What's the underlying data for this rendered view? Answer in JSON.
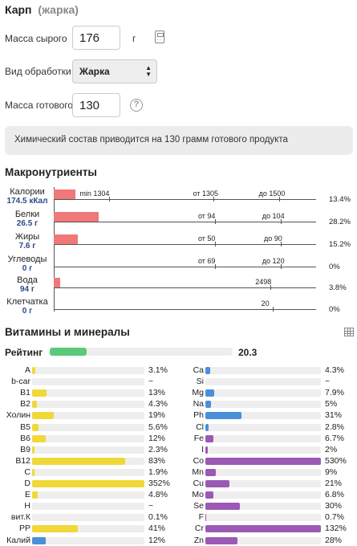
{
  "header": {
    "title": "Карп",
    "subtitle": "(жарка)"
  },
  "form": {
    "raw_mass_label": "Масса сырого",
    "raw_mass_value": "176",
    "raw_mass_unit": "г",
    "processing_label": "Вид обработки",
    "processing_value": "Жарка",
    "cooked_mass_label": "Масса готового",
    "cooked_mass_value": "130",
    "help": "?"
  },
  "note": "Химический состав приводится на 130 грамм готового продукта",
  "macros": {
    "title": "Макронутриенты",
    "rows": [
      {
        "name": "Калории",
        "value": "174.5 кКал",
        "bar_fraction": 0.134,
        "pct": "13.4%",
        "marks": [
          "min 1304",
          "от 1305",
          "до 1500"
        ]
      },
      {
        "name": "Белки",
        "value": "26.5 г",
        "bar_fraction": 0.282,
        "pct": "28.2%",
        "marks": [
          "от 94",
          "до 104"
        ]
      },
      {
        "name": "Жиры",
        "value": "7.6 г",
        "bar_fraction": 0.152,
        "pct": "15.2%",
        "marks": [
          "от 50",
          "до 90"
        ]
      },
      {
        "name": "Углеводы",
        "value": "0 г",
        "bar_fraction": 0,
        "pct": "0%",
        "marks": [
          "от 69",
          "до 120"
        ]
      },
      {
        "name": "Вода",
        "value": "94 г",
        "bar_fraction": 0.038,
        "pct": "3.8%",
        "marks": [
          "2498"
        ]
      },
      {
        "name": "Клетчатка",
        "value": "0 г",
        "bar_fraction": 0,
        "pct": "0%",
        "marks": [
          "20"
        ]
      }
    ]
  },
  "vitamins": {
    "title": "Витамины и минералы",
    "rating_label": "Рейтинг",
    "rating_value": "20.3",
    "rating_fraction": 0.203,
    "left": [
      {
        "name": "A",
        "pct": "3.1%",
        "frac": 0.031,
        "color": "#f0d838"
      },
      {
        "name": "b-car",
        "pct": "~",
        "frac": 0,
        "color": "#f0d838"
      },
      {
        "name": "B1",
        "pct": "13%",
        "frac": 0.13,
        "color": "#f0d838"
      },
      {
        "name": "B2",
        "pct": "4.3%",
        "frac": 0.043,
        "color": "#f0d838"
      },
      {
        "name": "Холин",
        "pct": "19%",
        "frac": 0.19,
        "color": "#f0d838"
      },
      {
        "name": "B5",
        "pct": "5.6%",
        "frac": 0.056,
        "color": "#f0d838"
      },
      {
        "name": "B6",
        "pct": "12%",
        "frac": 0.12,
        "color": "#f0d838"
      },
      {
        "name": "B9",
        "pct": "2.3%",
        "frac": 0.023,
        "color": "#f0d838"
      },
      {
        "name": "B12",
        "pct": "83%",
        "frac": 0.83,
        "color": "#f0d838"
      },
      {
        "name": "C",
        "pct": "1.9%",
        "frac": 0.019,
        "color": "#f0d838"
      },
      {
        "name": "D",
        "pct": "352%",
        "frac": 1.0,
        "color": "#f0d838"
      },
      {
        "name": "E",
        "pct": "4.8%",
        "frac": 0.048,
        "color": "#f0d838"
      },
      {
        "name": "H",
        "pct": "~",
        "frac": 0,
        "color": "#f0d838"
      },
      {
        "name": "вит.К",
        "pct": "0.1%",
        "frac": 0.001,
        "color": "#f0d838"
      },
      {
        "name": "PP",
        "pct": "41%",
        "frac": 0.41,
        "color": "#f0d838"
      },
      {
        "name": "Калий",
        "pct": "12%",
        "frac": 0.12,
        "color": "#4a8fd8"
      }
    ],
    "right": [
      {
        "name": "Ca",
        "pct": "4.3%",
        "frac": 0.043,
        "color": "#4a8fd8"
      },
      {
        "name": "Si",
        "pct": "~",
        "frac": 0,
        "color": "#4a8fd8"
      },
      {
        "name": "Mg",
        "pct": "7.9%",
        "frac": 0.079,
        "color": "#4a8fd8"
      },
      {
        "name": "Na",
        "pct": "5%",
        "frac": 0.05,
        "color": "#4a8fd8"
      },
      {
        "name": "Ph",
        "pct": "31%",
        "frac": 0.31,
        "color": "#4a8fd8"
      },
      {
        "name": "Cl",
        "pct": "2.8%",
        "frac": 0.028,
        "color": "#4a8fd8"
      },
      {
        "name": "Fe",
        "pct": "6.7%",
        "frac": 0.067,
        "color": "#9b59b6"
      },
      {
        "name": "I",
        "pct": "2%",
        "frac": 0.02,
        "color": "#9b59b6"
      },
      {
        "name": "Co",
        "pct": "530%",
        "frac": 1.0,
        "color": "#9b59b6"
      },
      {
        "name": "Mn",
        "pct": "9%",
        "frac": 0.09,
        "color": "#9b59b6"
      },
      {
        "name": "Cu",
        "pct": "21%",
        "frac": 0.21,
        "color": "#9b59b6"
      },
      {
        "name": "Mo",
        "pct": "6.8%",
        "frac": 0.068,
        "color": "#9b59b6"
      },
      {
        "name": "Se",
        "pct": "30%",
        "frac": 0.3,
        "color": "#9b59b6"
      },
      {
        "name": "F",
        "pct": "0.7%",
        "frac": 0.007,
        "color": "#9b59b6"
      },
      {
        "name": "Cr",
        "pct": "132%",
        "frac": 1.0,
        "color": "#9b59b6"
      },
      {
        "name": "Zn",
        "pct": "28%",
        "frac": 0.28,
        "color": "#9b59b6"
      }
    ]
  },
  "colors": {
    "macro_bar": "#f07878",
    "rating": "#5cc97a",
    "vitamin": "#f0d838",
    "mineral_blue": "#4a8fd8",
    "mineral_purple": "#9b59b6"
  }
}
